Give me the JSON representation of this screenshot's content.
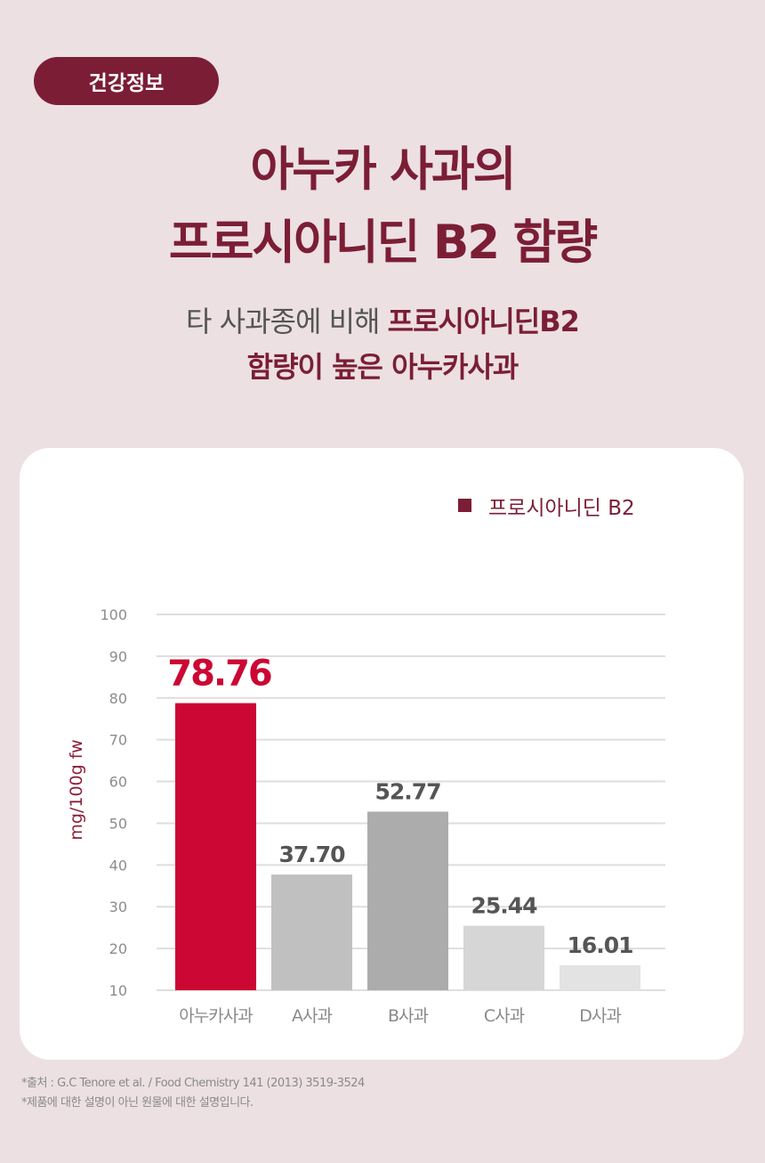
{
  "badge": "건강정보",
  "title": {
    "line1": "아누카 사과의",
    "line2": "프로시아니딘 B2 함량"
  },
  "subtitle": {
    "part1": "타 사과종에 비해 ",
    "part2_strong": "프로시아니딘B2",
    "line2_strong": "함량이 높은 아누카사과"
  },
  "colors": {
    "accent": "#7b1e35",
    "highlight_bar": "#cc0733",
    "background": "#ece0e3"
  },
  "chart_data": {
    "type": "bar",
    "ylabel": "mg/100g fw",
    "ylim": [
      10,
      100
    ],
    "yticks": [
      10,
      20,
      30,
      40,
      50,
      60,
      70,
      80,
      90,
      100
    ],
    "grid": true,
    "legend": {
      "position": "top-right",
      "label": "프로시아니딘 B2",
      "color": "#7b1e35"
    },
    "categories": [
      "아누카사과",
      "A사과",
      "B사과",
      "C사과",
      "D사과"
    ],
    "series": [
      {
        "name": "프로시아니딘 B2",
        "values": [
          78.76,
          37.7,
          52.77,
          25.44,
          16.01
        ],
        "labels": [
          "78.76",
          "37.70",
          "52.77",
          "25.44",
          "16.01"
        ],
        "colors": [
          "#cc0733",
          "#c0c0c0",
          "#acacac",
          "#d6d6d6",
          "#e3e3e3"
        ]
      }
    ]
  },
  "footnotes": {
    "source": "*출처 : G.C Tenore et al. / Food Chemistry 141 (2013) 3519-3524",
    "disclaimer": "*제품에 대한 설명이 아닌 원물에 대한 설명입니다."
  }
}
